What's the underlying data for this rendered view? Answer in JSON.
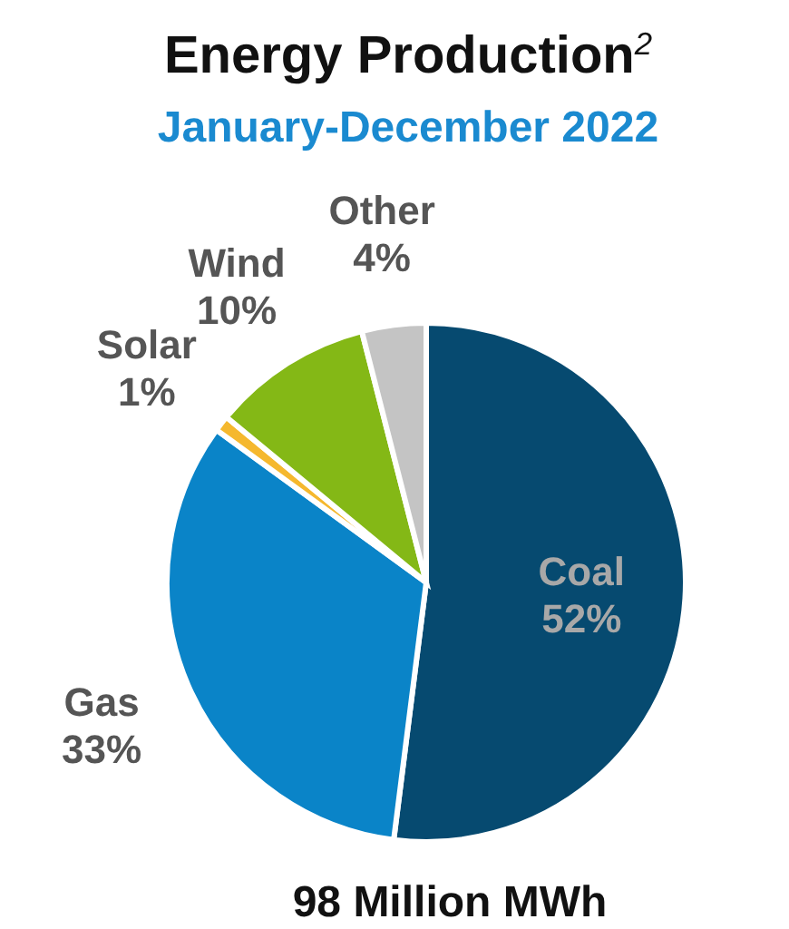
{
  "chart_data": {
    "type": "pie",
    "title": "Energy Production$^{2}$",
    "subtitle": "January-December 2022",
    "categories": [
      "Coal",
      "Gas",
      "Solar",
      "Wind",
      "Other"
    ],
    "values": [
      52,
      33,
      1,
      10,
      4
    ],
    "colors": [
      "#064a70",
      "#0a84c8",
      "#f5b82e",
      "#84b816",
      "#c4c4c4"
    ],
    "value_labels": [
      "52%",
      "33%",
      "1%",
      "10%",
      "4%"
    ],
    "annotations": [
      "98 Million MWh"
    ]
  }
}
